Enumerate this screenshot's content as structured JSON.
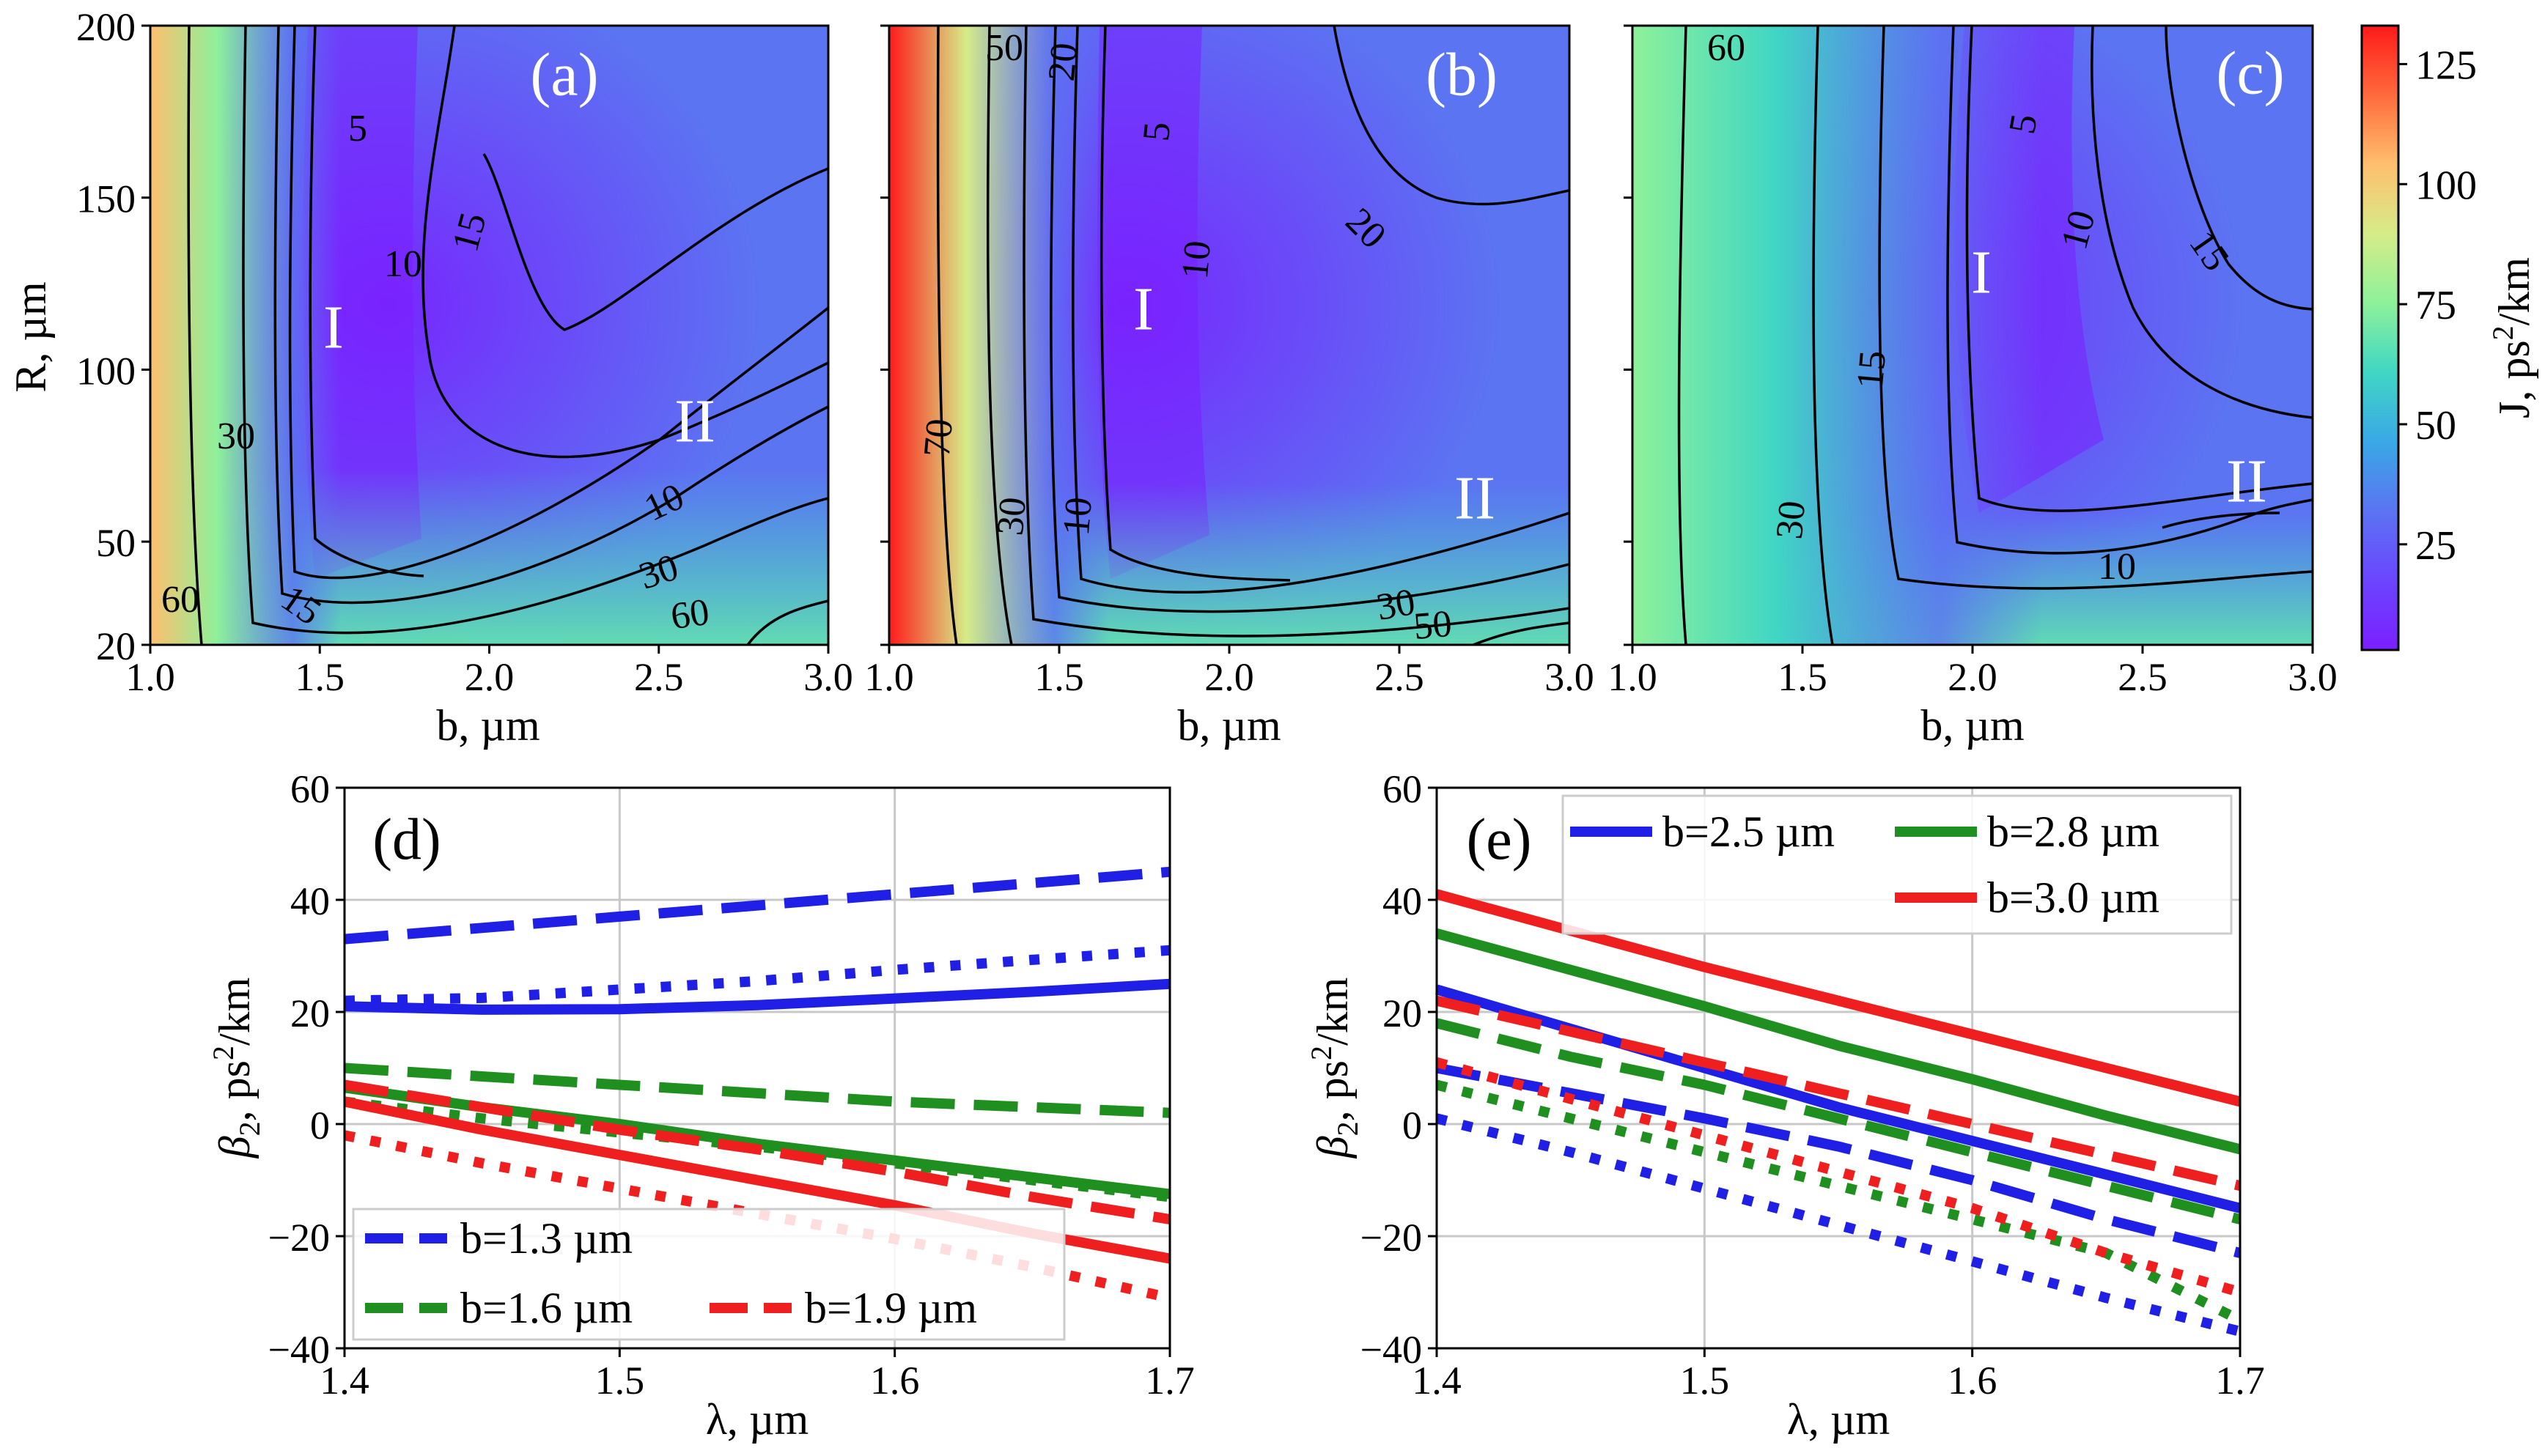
{
  "colorbar": {
    "label": "J, ps²/km",
    "label_main": "J, ps",
    "label_sup": "2",
    "label_tail": "/km",
    "range": [
      3,
      133
    ],
    "ticks": [
      25,
      50,
      75,
      100,
      125
    ],
    "tick_labels": [
      "25",
      "50",
      "75",
      "100",
      "125"
    ],
    "colors": [
      "#7a1fff",
      "#6b45ff",
      "#5b74f2",
      "#3aa8e6",
      "#40d6c4",
      "#8ef19a",
      "#d6ec88",
      "#ffbf6e",
      "#ff6a3c",
      "#ff1a1a"
    ]
  },
  "chart_data": [
    {
      "type": "heatmap",
      "panel": "(a)",
      "xlabel": "b, µm",
      "ylabel": "R, µm",
      "xlim": [
        1.0,
        3.0
      ],
      "ylim": [
        20,
        200
      ],
      "xticks": [
        "1.0",
        "1.5",
        "2.0",
        "2.5",
        "3.0"
      ],
      "yticks": [
        "20",
        "50",
        "100",
        "150",
        "200"
      ],
      "regions": [
        "I",
        "II"
      ],
      "contour_labels": [
        "5",
        "10",
        "15",
        "10",
        "15",
        "30",
        "30",
        "60",
        "60"
      ],
      "left_edge_value": 100
    },
    {
      "type": "heatmap",
      "panel": "(b)",
      "xlabel": "b, µm",
      "xlim": [
        1.0,
        3.0
      ],
      "ylim": [
        20,
        200
      ],
      "xticks": [
        "1.0",
        "1.5",
        "2.0",
        "2.5",
        "3.0"
      ],
      "regions": [
        "I",
        "II"
      ],
      "contour_labels": [
        "50",
        "20",
        "5",
        "10",
        "20",
        "70",
        "30",
        "10",
        "30",
        "50"
      ],
      "left_edge_value": 133
    },
    {
      "type": "heatmap",
      "panel": "(c)",
      "xlabel": "b, µm",
      "xlim": [
        1.0,
        3.0
      ],
      "ylim": [
        20,
        200
      ],
      "xticks": [
        "1.0",
        "1.5",
        "2.0",
        "2.5",
        "3.0"
      ],
      "regions": [
        "I",
        "II"
      ],
      "contour_labels": [
        "60",
        "5",
        "10",
        "15",
        "15",
        "30",
        "10"
      ],
      "left_edge_value": 70
    },
    {
      "type": "line",
      "panel": "(d)",
      "xlabel": "λ, µm",
      "ylabel_sym": "β",
      "ylabel_sub": "2",
      "ylabel_unit": ", ps",
      "ylabel_sup": "2",
      "ylabel_tail": "/km",
      "xlim": [
        1.4,
        1.7
      ],
      "ylim": [
        -40,
        60
      ],
      "xticks": [
        "1.4",
        "1.5",
        "1.6",
        "1.7"
      ],
      "yticks": [
        "−40",
        "−20",
        "0",
        "20",
        "40",
        "60"
      ],
      "x": [
        1.4,
        1.45,
        1.5,
        1.55,
        1.6,
        1.65,
        1.7
      ],
      "legend": [
        "b=1.3 µm",
        "b=1.6 µm",
        "b=1.9 µm"
      ],
      "series": [
        {
          "name": "b=1.3 µm",
          "color": "#1f1fe6",
          "style": "solid",
          "values": [
            21,
            20.4,
            20.5,
            21.2,
            22.4,
            23.6,
            25
          ]
        },
        {
          "name": "b=1.3 µm",
          "color": "#1f1fe6",
          "style": "dashed",
          "values": [
            33,
            35,
            37,
            39,
            41,
            43,
            45
          ]
        },
        {
          "name": "b=1.3 µm",
          "color": "#1f1fe6",
          "style": "dotted",
          "values": [
            22,
            22.5,
            24,
            25.5,
            27.5,
            29.3,
            31
          ]
        },
        {
          "name": "b=1.6 µm",
          "color": "#1f8f1f",
          "style": "solid",
          "values": [
            6.5,
            3,
            0,
            -3.5,
            -6.5,
            -9.5,
            -12.5
          ]
        },
        {
          "name": "b=1.6 µm",
          "color": "#1f8f1f",
          "style": "dashed",
          "values": [
            10,
            8.5,
            7,
            5.5,
            4,
            3,
            2
          ]
        },
        {
          "name": "b=1.6 µm",
          "color": "#1f8f1f",
          "style": "dotted",
          "values": [
            4,
            1,
            -1.5,
            -4,
            -7,
            -10,
            -13
          ]
        },
        {
          "name": "b=1.9 µm",
          "color": "#f01f1f",
          "style": "solid",
          "values": [
            4,
            -1,
            -5.5,
            -10,
            -14.5,
            -19.5,
            -24
          ]
        },
        {
          "name": "b=1.9 µm",
          "color": "#f01f1f",
          "style": "dashed",
          "values": [
            7,
            3,
            -1,
            -4.5,
            -8.5,
            -13,
            -17
          ]
        },
        {
          "name": "b=1.9 µm",
          "color": "#f01f1f",
          "style": "dotted",
          "values": [
            -2,
            -7,
            -11.5,
            -16,
            -20.5,
            -25.5,
            -31
          ]
        }
      ]
    },
    {
      "type": "line",
      "panel": "(e)",
      "xlabel": "λ, µm",
      "ylabel_sym": "β",
      "ylabel_sub": "2",
      "ylabel_unit": ", ps",
      "ylabel_sup": "2",
      "ylabel_tail": "/km",
      "xlim": [
        1.4,
        1.7
      ],
      "ylim": [
        -40,
        60
      ],
      "xticks": [
        "1.4",
        "1.5",
        "1.6",
        "1.7"
      ],
      "yticks": [
        "−40",
        "−20",
        "0",
        "20",
        "40",
        "60"
      ],
      "x": [
        1.4,
        1.45,
        1.5,
        1.55,
        1.6,
        1.65,
        1.7
      ],
      "legend": [
        "b=2.5 µm",
        "b=2.8 µm",
        "b=3.0 µm"
      ],
      "series": [
        {
          "name": "b=2.5 µm",
          "color": "#1f1fe6",
          "style": "solid",
          "values": [
            24,
            17,
            10,
            3,
            -3,
            -9,
            -15
          ]
        },
        {
          "name": "b=2.5 µm",
          "color": "#1f1fe6",
          "style": "dashed",
          "values": [
            10,
            5.5,
            1,
            -4,
            -10,
            -17,
            -23
          ]
        },
        {
          "name": "b=2.5 µm",
          "color": "#1f1fe6",
          "style": "dotted",
          "values": [
            1,
            -5,
            -11.5,
            -18,
            -24.5,
            -31,
            -37
          ]
        },
        {
          "name": "b=2.8 µm",
          "color": "#1f8f1f",
          "style": "solid",
          "values": [
            34,
            27.5,
            21,
            14,
            8,
            1.5,
            -4.5
          ]
        },
        {
          "name": "b=2.8 µm",
          "color": "#1f8f1f",
          "style": "dashed",
          "values": [
            18,
            12,
            7,
            1,
            -5,
            -11,
            -17
          ]
        },
        {
          "name": "b=2.8 µm",
          "color": "#1f8f1f",
          "style": "dotted",
          "values": [
            7,
            1,
            -5,
            -11,
            -17,
            -23,
            -35
          ]
        },
        {
          "name": "b=3.0 µm",
          "color": "#f01f1f",
          "style": "solid",
          "values": [
            41,
            34.5,
            28,
            22,
            16,
            10,
            4
          ]
        },
        {
          "name": "b=3.0 µm",
          "color": "#f01f1f",
          "style": "dashed",
          "values": [
            22,
            16.5,
            11,
            5.5,
            0,
            -5.5,
            -11
          ]
        },
        {
          "name": "b=3.0 µm",
          "color": "#f01f1f",
          "style": "dotted",
          "values": [
            11,
            4.5,
            -2,
            -8.5,
            -15,
            -23,
            -30
          ]
        }
      ]
    }
  ]
}
